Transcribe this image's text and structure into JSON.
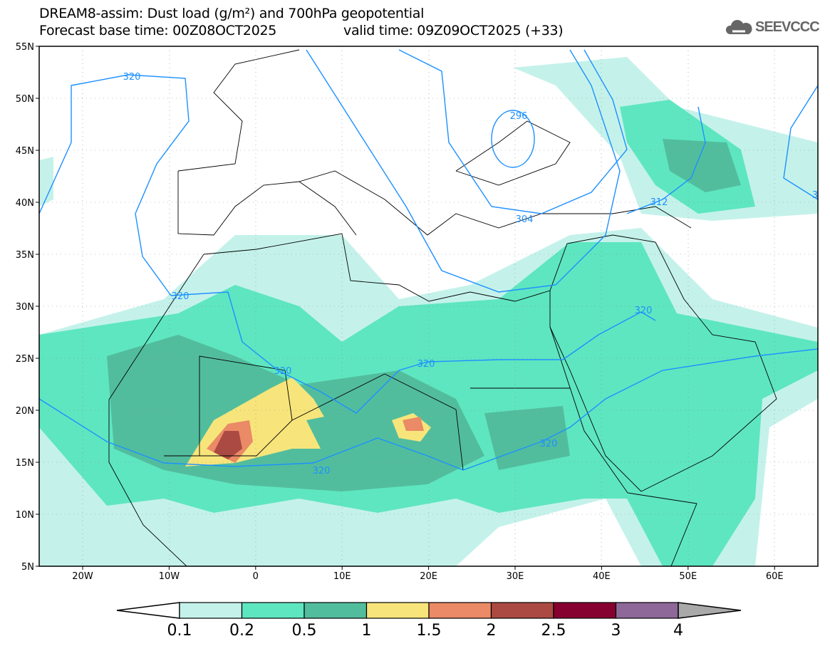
{
  "header": {
    "title": "DREAM8-assim: Dust load (g/m²) and 700hPa geopotential",
    "base_time": "Forecast base time: 00Z08OCT2025",
    "valid_time": "valid time: 09Z09OCT2025 (+33)",
    "logo_text": "SEEVCCC"
  },
  "map": {
    "lat_labels": [
      "55N",
      "50N",
      "45N",
      "40N",
      "35N",
      "30N",
      "25N",
      "20N",
      "15N",
      "10N",
      "5N"
    ],
    "lon_labels": [
      "20W",
      "10W",
      "0",
      "10E",
      "20E",
      "30E",
      "40E",
      "50E",
      "60E"
    ],
    "contour_labels": [
      "320",
      "320",
      "320",
      "320",
      "320",
      "320",
      "320",
      "296",
      "304",
      "312",
      "3"
    ]
  },
  "colorbar": {
    "labels": [
      "0.1",
      "0.2",
      "0.5",
      "1",
      "1.5",
      "2",
      "2.5",
      "3",
      "4"
    ],
    "colors": [
      "#c4f2ea",
      "#5ee6c0",
      "#52bd9d",
      "#f7e57b",
      "#ea8a66",
      "#ab4a42",
      "#860030",
      "#8e6899"
    ],
    "over_color": "#a9a9a9"
  }
}
